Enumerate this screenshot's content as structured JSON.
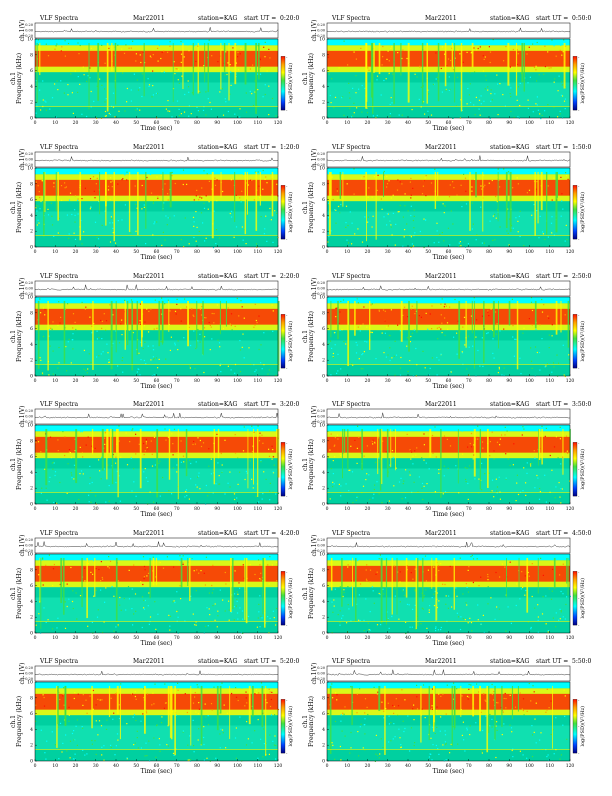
{
  "header": {
    "left": "VLF Spectra",
    "date": "Mar22011",
    "station": "station=KAG",
    "start_prefix": "start  UT ="
  },
  "labels": {
    "trace_ylabel": "ch.1(V)",
    "trace_ticks": [
      "0.20",
      "0.00",
      "-0.20"
    ],
    "spec_ylabel_channel": "ch.1",
    "spec_ylabel": "Frequency  (kHz)",
    "xlabel": "Time  (sec)",
    "cbar_label": "log(PSD)(V²/Hz)",
    "cbar_ticks": [
      "-",
      "-",
      "-"
    ]
  },
  "colors": {
    "bg": "#00d0a0",
    "cyan": "#00ffff",
    "green": "#40e040",
    "yellow": "#ffff00",
    "orange": "#ffa000",
    "red": "#ff1000",
    "blue": "#0040ff"
  },
  "chart_data": {
    "type": "heatmap",
    "x_range": [
      0,
      120
    ],
    "x_ticks": [
      "0",
      "10",
      "20",
      "30",
      "40",
      "50",
      "60",
      "70",
      "80",
      "90",
      "100",
      "110",
      "120"
    ],
    "y_range_khz": [
      0,
      10
    ],
    "y_ticks": [
      "0",
      "2",
      "4",
      "6",
      "8",
      "10"
    ],
    "panels": [
      {
        "start": "0:20:0"
      },
      {
        "start": "0:50:0"
      },
      {
        "start": "1:20:0"
      },
      {
        "start": "1:50:0"
      },
      {
        "start": "2:20:0"
      },
      {
        "start": "2:50:0"
      },
      {
        "start": "3:20:0"
      },
      {
        "start": "3:50:0"
      },
      {
        "start": "4:20:0"
      },
      {
        "start": "4:50:0"
      },
      {
        "start": "5:20:0"
      },
      {
        "start": "5:50:0"
      }
    ]
  }
}
